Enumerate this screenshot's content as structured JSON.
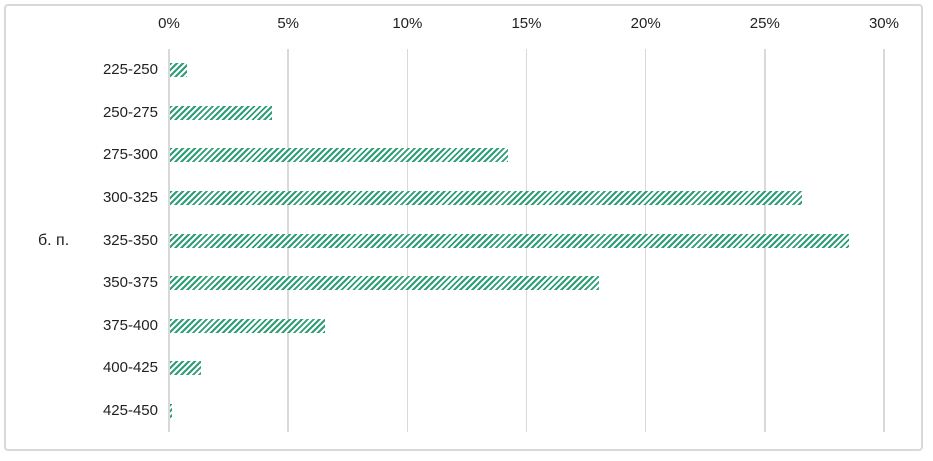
{
  "chart_data": {
    "type": "bar",
    "orientation": "horizontal",
    "title": "",
    "xlabel": "",
    "ylabel": "б. п.",
    "categories": [
      "225-250",
      "250-275",
      "275-300",
      "300-325",
      "325-350",
      "350-375",
      "375-400",
      "400-425",
      "425-450"
    ],
    "values": [
      0.7,
      4.3,
      14.2,
      26.5,
      28.5,
      18.0,
      6.5,
      1.3,
      0.1
    ],
    "unit": "%",
    "xlim": [
      0,
      30
    ],
    "x_ticks": [
      "0%",
      "5%",
      "10%",
      "15%",
      "20%",
      "25%",
      "30%"
    ],
    "x_tick_values": [
      0,
      5,
      10,
      15,
      20,
      25,
      30
    ],
    "axis_position": "top",
    "grid": true,
    "bar_style": "diagonal-hatch",
    "legend": "none",
    "colors": {
      "bar": "#2e9e76",
      "bar_gap": "#ffffff",
      "gridline": "#d9d9d9",
      "frame_border": "#d9d9d9",
      "text": "#212121",
      "background": "#ffffff"
    }
  }
}
